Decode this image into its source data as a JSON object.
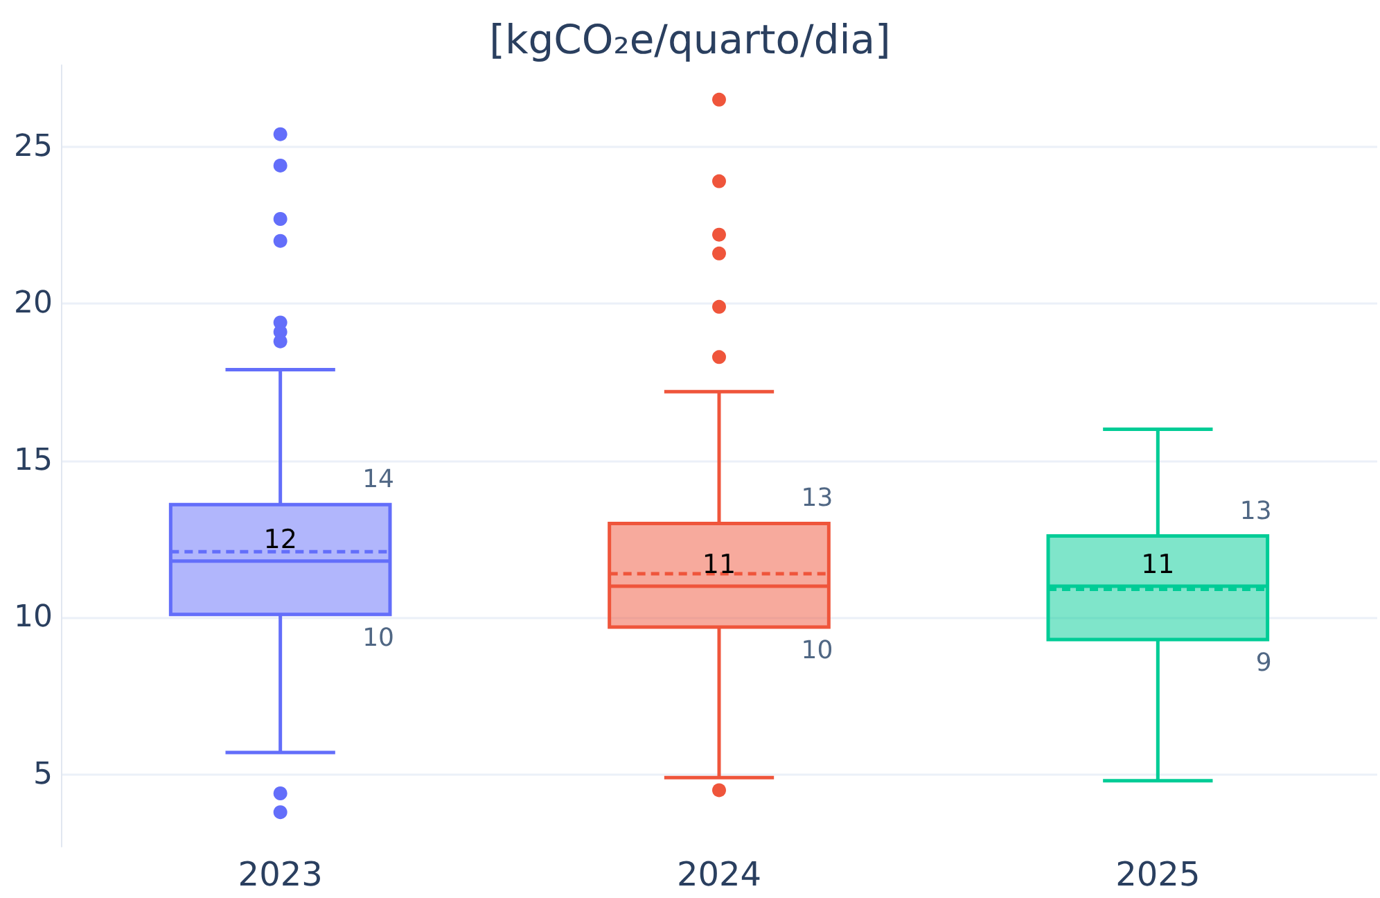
{
  "chart_data": {
    "type": "box",
    "title": "[kgCO₂e/quarto/dia]",
    "categories": [
      "2023",
      "2024",
      "2025"
    ],
    "colors": [
      "#636efa",
      "#ef553b",
      "#00cc96"
    ],
    "boxes": [
      {
        "low": 5.7,
        "q1": 10.1,
        "median": 11.8,
        "q3": 13.6,
        "high": 17.9,
        "mean": 12.1,
        "outliers": [
          25.4,
          24.4,
          22.7,
          22.0,
          19.4,
          19.1,
          18.8,
          4.4,
          3.8
        ]
      },
      {
        "low": 4.9,
        "q1": 9.7,
        "median": 11.0,
        "q3": 13.0,
        "high": 17.2,
        "mean": 11.4,
        "outliers": [
          26.5,
          23.9,
          22.2,
          21.6,
          19.9,
          18.3,
          4.5
        ]
      },
      {
        "low": 4.8,
        "q1": 9.3,
        "median": 11.0,
        "q3": 12.6,
        "high": 16.0,
        "mean": 10.9
      }
    ],
    "ylim": [
      2.7,
      27.6
    ],
    "yticks": [
      5,
      10,
      15,
      20,
      25
    ],
    "grid": "y",
    "annotations": [
      "14",
      {
        "text": "12",
        "x": "2023",
        "y": 11.8
      },
      "10",
      "13",
      {
        "text": "11",
        "x": "2024",
        "y": 11.0
      },
      "10",
      "13",
      {
        "text": "11",
        "x": "2025",
        "y": 11.0
      },
      "9"
    ]
  }
}
